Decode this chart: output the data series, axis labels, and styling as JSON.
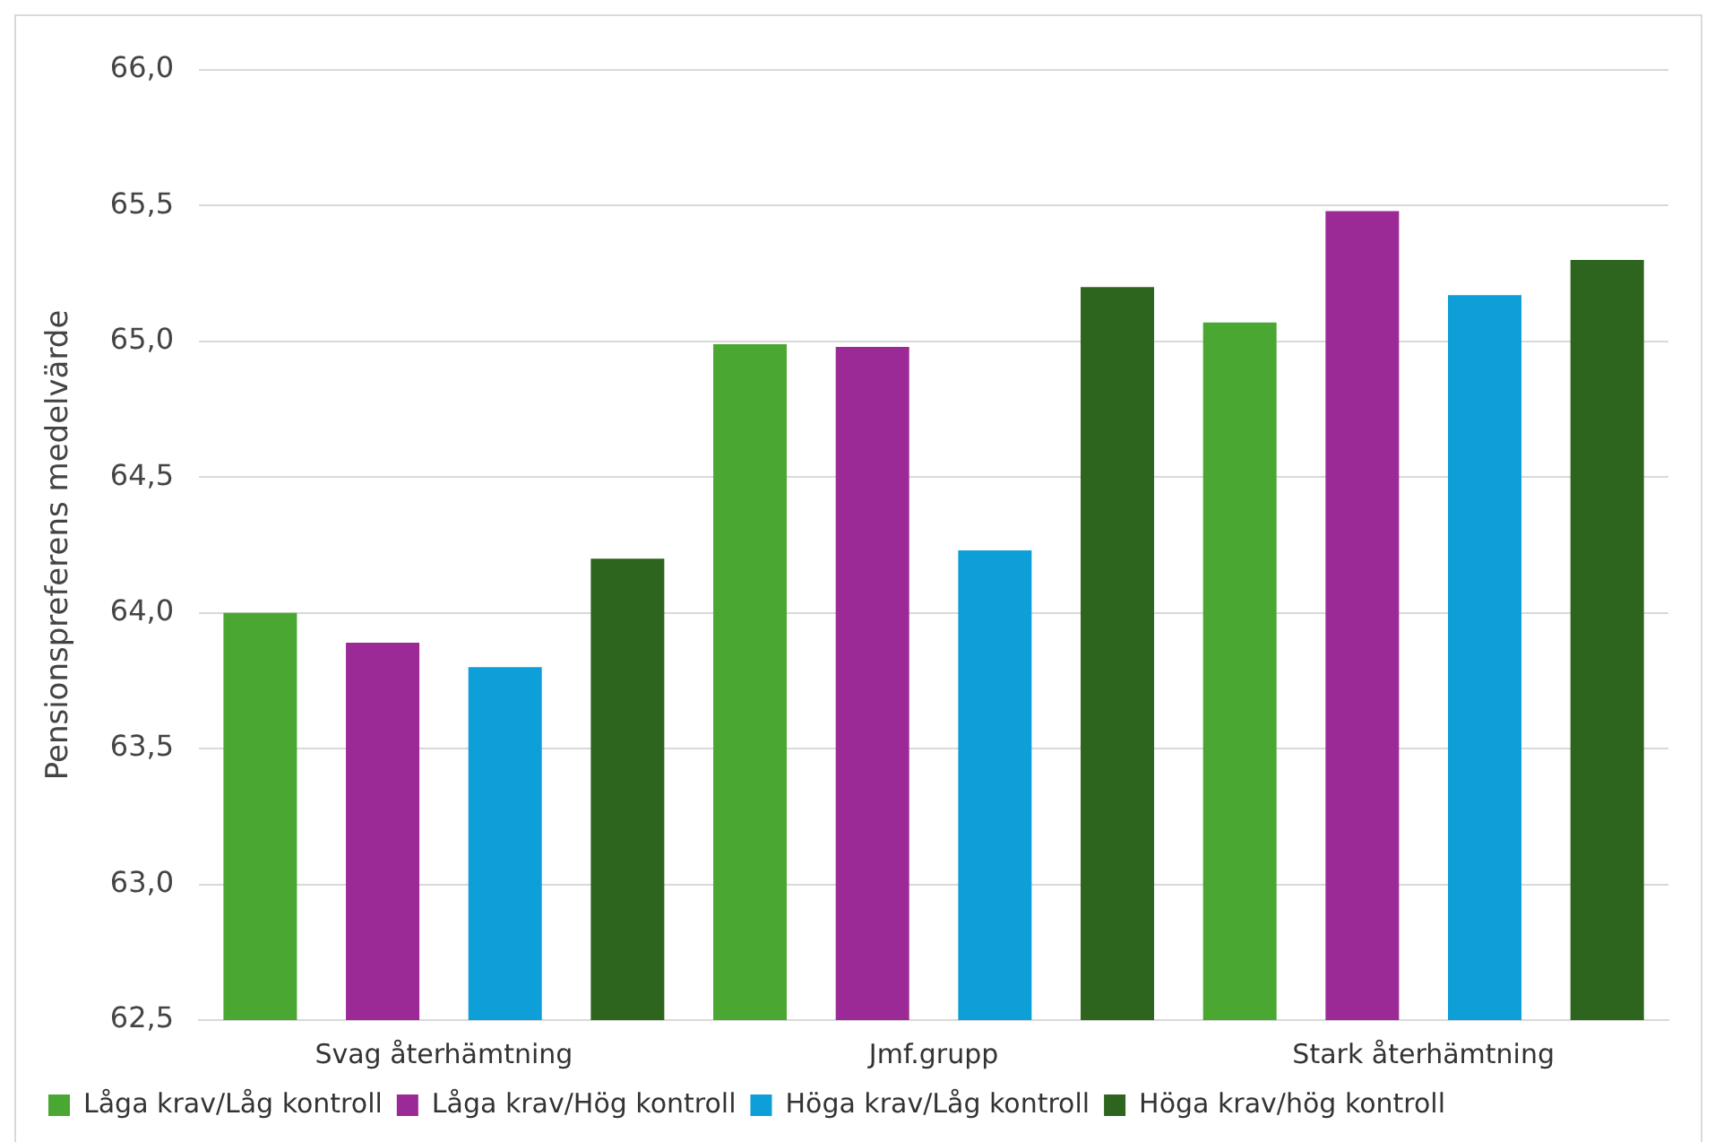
{
  "chart_data": {
    "type": "bar",
    "ylabel": "Pensionspreferens medelvärde",
    "categories": [
      "Svag återhämtning",
      "Jmf.grupp",
      "Stark återhämtning"
    ],
    "series": [
      {
        "name": "Låga krav/Låg kontroll",
        "color": "#4aa832",
        "values": [
          64.0,
          64.99,
          65.07
        ]
      },
      {
        "name": "Låga krav/Hög kontroll",
        "color": "#9b2a96",
        "values": [
          63.89,
          64.98,
          65.48
        ]
      },
      {
        "name": "Höga krav/Låg kontroll",
        "color": "#0e9fd8",
        "values": [
          63.8,
          64.23,
          65.17
        ]
      },
      {
        "name": "Höga krav/hög kontroll",
        "color": "#2d641e",
        "values": [
          64.2,
          65.2,
          65.3
        ]
      }
    ],
    "ylim": [
      62.5,
      66.0
    ],
    "yticks": [
      {
        "value": 62.5,
        "label": "62,5"
      },
      {
        "value": 63.0,
        "label": "63,0"
      },
      {
        "value": 63.5,
        "label": "63,5"
      },
      {
        "value": 64.0,
        "label": "64,0"
      },
      {
        "value": 64.5,
        "label": "64,5"
      },
      {
        "value": 65.0,
        "label": "65,0"
      },
      {
        "value": 65.5,
        "label": "65,5"
      },
      {
        "value": 66.0,
        "label": "66,0"
      }
    ],
    "grid": "y",
    "legend": "bottom"
  }
}
